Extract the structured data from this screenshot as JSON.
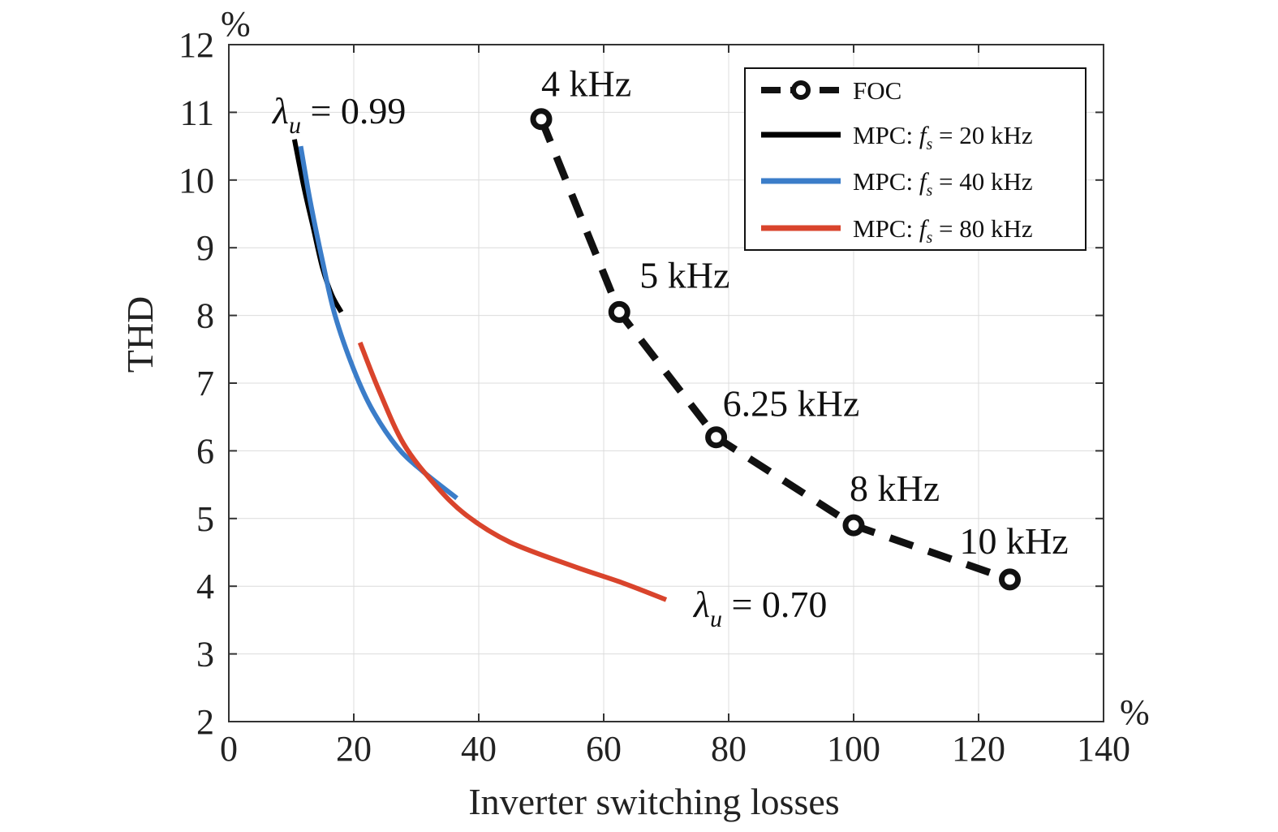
{
  "chart_data": {
    "type": "line",
    "xlabel": "Inverter switching losses",
    "ylabel": "THD",
    "x_unit": "%",
    "y_unit": "%",
    "xlim": [
      0,
      140
    ],
    "ylim": [
      2,
      12
    ],
    "xticks": [
      0,
      20,
      40,
      60,
      80,
      100,
      120,
      140
    ],
    "yticks": [
      2,
      3,
      4,
      5,
      6,
      7,
      8,
      9,
      10,
      11,
      12
    ],
    "grid": true,
    "legend_position": "top-right",
    "series": [
      {
        "name": "FOC",
        "color": "#111111",
        "style": "dashed-circle-markers",
        "points": [
          [
            50,
            10.9
          ],
          [
            62.5,
            8.05
          ],
          [
            78,
            6.2
          ],
          [
            100,
            4.9
          ],
          [
            125,
            4.1
          ]
        ]
      },
      {
        "name": "MPC: fs = 20 kHz",
        "color": "#000000",
        "style": "solid",
        "points": [
          [
            10.5,
            10.6
          ],
          [
            12,
            9.9
          ],
          [
            13.5,
            9.3
          ],
          [
            15,
            8.7
          ],
          [
            16.5,
            8.3
          ],
          [
            18,
            8.05
          ]
        ]
      },
      {
        "name": "MPC: fs = 40 kHz",
        "color": "#3b7dc9",
        "style": "solid",
        "points": [
          [
            11.5,
            10.5
          ],
          [
            13,
            9.7
          ],
          [
            15,
            8.8
          ],
          [
            17,
            8.0
          ],
          [
            20,
            7.2
          ],
          [
            23,
            6.6
          ],
          [
            27,
            6.05
          ],
          [
            31,
            5.7
          ],
          [
            36.5,
            5.3
          ]
        ]
      },
      {
        "name": "MPC: fs = 80 kHz",
        "color": "#d9442c",
        "style": "solid",
        "points": [
          [
            21,
            7.6
          ],
          [
            24,
            6.9
          ],
          [
            28,
            6.1
          ],
          [
            33,
            5.5
          ],
          [
            38,
            5.05
          ],
          [
            45,
            4.65
          ],
          [
            55,
            4.3
          ],
          [
            63,
            4.05
          ],
          [
            70,
            3.8
          ]
        ]
      }
    ],
    "annotations": [
      {
        "label": "4 kHz",
        "x": 50,
        "y": 10.9
      },
      {
        "label": "5 kHz",
        "x": 62.5,
        "y": 8.05
      },
      {
        "label": "6.25 kHz",
        "x": 78,
        "y": 6.2
      },
      {
        "label": "8 kHz",
        "x": 100,
        "y": 4.9
      },
      {
        "label": "10 kHz",
        "x": 125,
        "y": 4.1
      }
    ],
    "lambda_labels": [
      {
        "symbol": "λ",
        "subscript": "u",
        "text": " = 0.99"
      },
      {
        "symbol": "λ",
        "subscript": "u",
        "text": " = 0.70"
      }
    ],
    "legend_entries": [
      {
        "prefix": "FOC",
        "sym": "",
        "sub": "",
        "suffix": ""
      },
      {
        "prefix": "MPC: ",
        "sym": "f",
        "sub": "s",
        "suffix": " = 20 kHz"
      },
      {
        "prefix": "MPC: ",
        "sym": "f",
        "sub": "s",
        "suffix": " = 40 kHz"
      },
      {
        "prefix": "MPC: ",
        "sym": "f",
        "sub": "s",
        "suffix": " = 80 kHz"
      }
    ]
  }
}
